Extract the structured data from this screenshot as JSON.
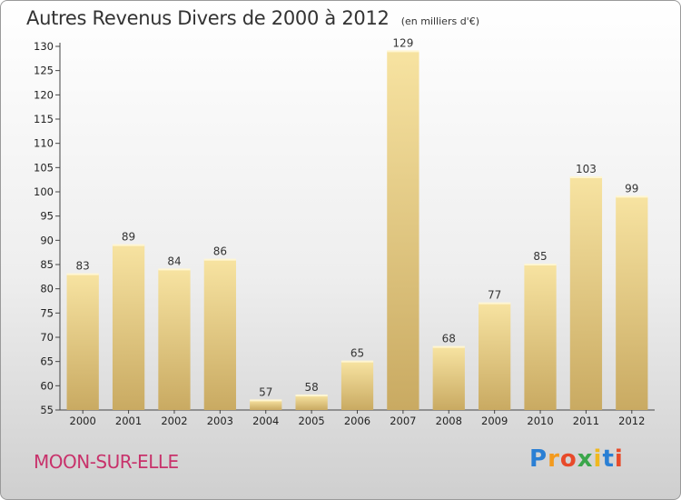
{
  "title": "Autres Revenus Divers de 2000 à 2012",
  "subtitle": "(en milliers d'€)",
  "commune": "MOON-SUR-ELLE",
  "logo": {
    "letters": [
      "P",
      "r",
      "o",
      "x",
      "i",
      "t",
      "i"
    ],
    "colors": [
      "#2a7fd4",
      "#f39a1e",
      "#e84a2a",
      "#3aa64a",
      "#f0b81f",
      "#2a7fd4",
      "#e84a2a"
    ]
  },
  "colors": {
    "bar_light": "#f7e3a1",
    "bar_dark": "#c9aa62",
    "commune": "#c8326b"
  },
  "chart_data": {
    "type": "bar",
    "categories": [
      "2000",
      "2001",
      "2002",
      "2003",
      "2004",
      "2005",
      "2006",
      "2007",
      "2008",
      "2009",
      "2010",
      "2011",
      "2012"
    ],
    "values": [
      83,
      89,
      84,
      86,
      57,
      58,
      65,
      129,
      68,
      77,
      85,
      103,
      99
    ],
    "ylim": [
      55,
      130
    ],
    "yticks": [
      55,
      60,
      65,
      70,
      75,
      80,
      85,
      90,
      95,
      100,
      105,
      110,
      115,
      120,
      125,
      130
    ],
    "xlabel": "",
    "ylabel": "",
    "grid": false,
    "legend": "none"
  }
}
